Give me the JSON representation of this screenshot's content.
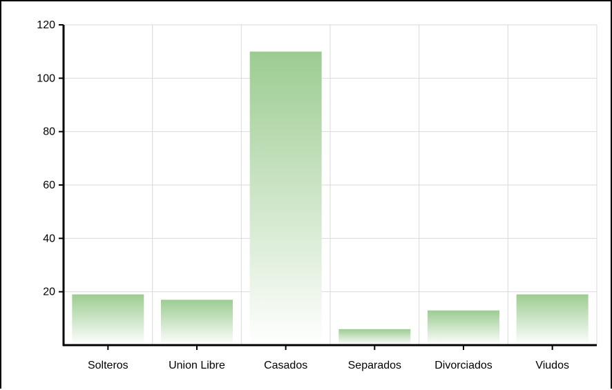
{
  "chart_data": {
    "type": "bar",
    "title": "",
    "xlabel": "",
    "ylabel": "",
    "categories": [
      "Solteros",
      "Union Libre",
      "Casados",
      "Separados",
      "Divorciados",
      "Viudos"
    ],
    "values": [
      19,
      17,
      110,
      6,
      13,
      19
    ],
    "ylim": [
      0,
      120
    ],
    "yticks": [
      20,
      40,
      60,
      80,
      100,
      120
    ],
    "grid": true,
    "legend": "none",
    "colors": {
      "bar_top": "#9ccc91",
      "bar_bottom": "#ffffff",
      "grid": "#d9d9d9",
      "axis": "#000000"
    }
  }
}
